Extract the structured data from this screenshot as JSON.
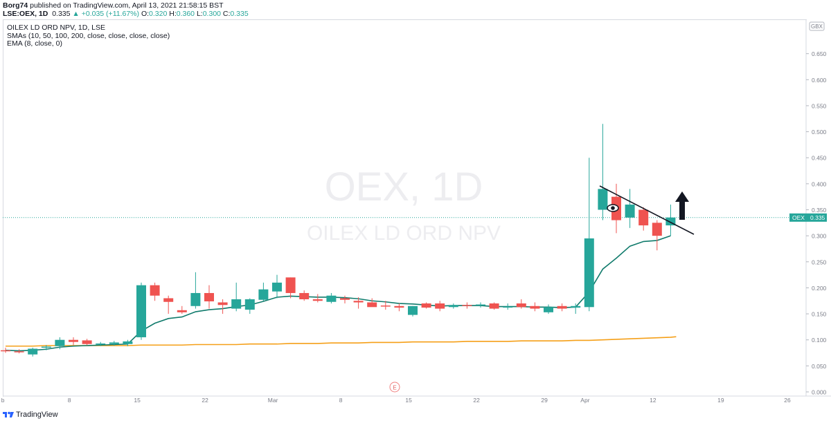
{
  "header": {
    "publisher": "Borg74",
    "published_text": "published on TradingView.com, April 13, 2021 21:58:15 BST",
    "symbol": "LSE:OEX, 1D",
    "price": "0.335",
    "change_arrow": "▲",
    "change": "+0.035 (+11.67%)",
    "o_label": "O:",
    "o": "0.320",
    "h_label": "H:",
    "h": "0.360",
    "l_label": "L:",
    "l": "0.300",
    "c_label": "C:",
    "c": "0.335"
  },
  "legend": {
    "name": "OILEX LD ORD NPV, 1D, LSE",
    "sma": "SMAs (10, 50, 100, 200, close, close, close, close)",
    "ema": "EMA (8, close, 0)"
  },
  "watermark": {
    "ticker": "OEX, 1D",
    "name": "OILEX LD ORD NPV"
  },
  "footer": {
    "brand": "TradingView"
  },
  "earnings_marker": "E",
  "price_label": {
    "ticker": "OEX",
    "value": "0.335"
  },
  "colors": {
    "up": "#26a69a",
    "down": "#ef5350",
    "ema": "#0f7a6b",
    "sma": "#f59f17",
    "price_line": "#26a69a"
  },
  "chart_data": {
    "type": "candlestick",
    "currency": "GBX",
    "ylim": [
      0,
      0.7
    ],
    "y_ticks": [
      "0.000",
      "0.050",
      "0.100",
      "0.150",
      "0.200",
      "0.250",
      "0.300",
      "0.350",
      "0.400",
      "0.450",
      "0.500",
      "0.550",
      "0.600",
      "0.650"
    ],
    "x_ticks": [
      "b",
      "8",
      "15",
      "22",
      "Mar",
      "8",
      "15",
      "22",
      "29",
      "Apr",
      "12",
      "19",
      "26"
    ],
    "candles": [
      {
        "o": 0.08,
        "h": 0.085,
        "l": 0.075,
        "c": 0.078
      },
      {
        "o": 0.078,
        "h": 0.082,
        "l": 0.074,
        "c": 0.076
      },
      {
        "o": 0.072,
        "h": 0.085,
        "l": 0.068,
        "c": 0.083
      },
      {
        "o": 0.085,
        "h": 0.09,
        "l": 0.08,
        "c": 0.087
      },
      {
        "o": 0.088,
        "h": 0.105,
        "l": 0.082,
        "c": 0.1
      },
      {
        "o": 0.1,
        "h": 0.105,
        "l": 0.09,
        "c": 0.096
      },
      {
        "o": 0.099,
        "h": 0.102,
        "l": 0.09,
        "c": 0.092
      },
      {
        "o": 0.091,
        "h": 0.096,
        "l": 0.088,
        "c": 0.093
      },
      {
        "o": 0.092,
        "h": 0.098,
        "l": 0.089,
        "c": 0.095
      },
      {
        "o": 0.092,
        "h": 0.1,
        "l": 0.088,
        "c": 0.097
      },
      {
        "o": 0.105,
        "h": 0.21,
        "l": 0.1,
        "c": 0.205
      },
      {
        "o": 0.205,
        "h": 0.21,
        "l": 0.175,
        "c": 0.185
      },
      {
        "o": 0.18,
        "h": 0.185,
        "l": 0.15,
        "c": 0.173
      },
      {
        "o": 0.157,
        "h": 0.165,
        "l": 0.15,
        "c": 0.153
      },
      {
        "o": 0.165,
        "h": 0.23,
        "l": 0.16,
        "c": 0.19
      },
      {
        "o": 0.19,
        "h": 0.205,
        "l": 0.16,
        "c": 0.174
      },
      {
        "o": 0.172,
        "h": 0.178,
        "l": 0.15,
        "c": 0.167
      },
      {
        "o": 0.16,
        "h": 0.21,
        "l": 0.155,
        "c": 0.178
      },
      {
        "o": 0.158,
        "h": 0.18,
        "l": 0.15,
        "c": 0.178
      },
      {
        "o": 0.177,
        "h": 0.21,
        "l": 0.175,
        "c": 0.197
      },
      {
        "o": 0.193,
        "h": 0.225,
        "l": 0.18,
        "c": 0.21
      },
      {
        "o": 0.22,
        "h": 0.22,
        "l": 0.18,
        "c": 0.19
      },
      {
        "o": 0.19,
        "h": 0.195,
        "l": 0.175,
        "c": 0.178
      },
      {
        "o": 0.178,
        "h": 0.188,
        "l": 0.172,
        "c": 0.175
      },
      {
        "o": 0.173,
        "h": 0.19,
        "l": 0.17,
        "c": 0.185
      },
      {
        "o": 0.18,
        "h": 0.185,
        "l": 0.17,
        "c": 0.177
      },
      {
        "o": 0.175,
        "h": 0.182,
        "l": 0.16,
        "c": 0.172
      },
      {
        "o": 0.172,
        "h": 0.18,
        "l": 0.165,
        "c": 0.163
      },
      {
        "o": 0.166,
        "h": 0.175,
        "l": 0.158,
        "c": 0.165
      },
      {
        "o": 0.165,
        "h": 0.17,
        "l": 0.155,
        "c": 0.162
      },
      {
        "o": 0.148,
        "h": 0.165,
        "l": 0.145,
        "c": 0.165
      },
      {
        "o": 0.17,
        "h": 0.172,
        "l": 0.16,
        "c": 0.162
      },
      {
        "o": 0.17,
        "h": 0.175,
        "l": 0.155,
        "c": 0.16
      },
      {
        "o": 0.163,
        "h": 0.17,
        "l": 0.16,
        "c": 0.167
      },
      {
        "o": 0.167,
        "h": 0.172,
        "l": 0.16,
        "c": 0.165
      },
      {
        "o": 0.166,
        "h": 0.172,
        "l": 0.162,
        "c": 0.168
      },
      {
        "o": 0.17,
        "h": 0.172,
        "l": 0.158,
        "c": 0.16
      },
      {
        "o": 0.163,
        "h": 0.17,
        "l": 0.158,
        "c": 0.164
      },
      {
        "o": 0.17,
        "h": 0.178,
        "l": 0.16,
        "c": 0.163
      },
      {
        "o": 0.165,
        "h": 0.172,
        "l": 0.155,
        "c": 0.16
      },
      {
        "o": 0.153,
        "h": 0.168,
        "l": 0.15,
        "c": 0.163
      },
      {
        "o": 0.165,
        "h": 0.17,
        "l": 0.155,
        "c": 0.16
      },
      {
        "o": 0.162,
        "h": 0.17,
        "l": 0.15,
        "c": 0.165
      },
      {
        "o": 0.163,
        "h": 0.45,
        "l": 0.155,
        "c": 0.295
      },
      {
        "o": 0.35,
        "h": 0.515,
        "l": 0.33,
        "c": 0.39
      },
      {
        "o": 0.375,
        "h": 0.4,
        "l": 0.305,
        "c": 0.33
      },
      {
        "o": 0.335,
        "h": 0.39,
        "l": 0.315,
        "c": 0.36
      },
      {
        "o": 0.35,
        "h": 0.355,
        "l": 0.31,
        "c": 0.32
      },
      {
        "o": 0.325,
        "h": 0.33,
        "l": 0.272,
        "c": 0.3
      },
      {
        "o": 0.32,
        "h": 0.36,
        "l": 0.3,
        "c": 0.335
      }
    ],
    "ema8": [
      0.08,
      0.079,
      0.08,
      0.082,
      0.086,
      0.088,
      0.089,
      0.09,
      0.091,
      0.092,
      0.117,
      0.132,
      0.141,
      0.144,
      0.154,
      0.158,
      0.16,
      0.164,
      0.167,
      0.174,
      0.182,
      0.184,
      0.183,
      0.182,
      0.182,
      0.181,
      0.179,
      0.175,
      0.173,
      0.17,
      0.169,
      0.167,
      0.165,
      0.166,
      0.166,
      0.166,
      0.164,
      0.164,
      0.164,
      0.163,
      0.163,
      0.162,
      0.163,
      0.192,
      0.236,
      0.257,
      0.28,
      0.289,
      0.291,
      0.3
    ],
    "sma200": [
      0.088,
      0.088,
      0.088,
      0.089,
      0.089,
      0.089,
      0.089,
      0.089,
      0.089,
      0.089,
      0.09,
      0.09,
      0.09,
      0.09,
      0.091,
      0.091,
      0.091,
      0.091,
      0.092,
      0.092,
      0.092,
      0.093,
      0.093,
      0.093,
      0.094,
      0.094,
      0.094,
      0.095,
      0.095,
      0.095,
      0.096,
      0.096,
      0.096,
      0.096,
      0.097,
      0.097,
      0.097,
      0.097,
      0.098,
      0.098,
      0.098,
      0.098,
      0.099,
      0.099,
      0.1,
      0.101,
      0.102,
      0.103,
      0.104,
      0.105
    ]
  }
}
